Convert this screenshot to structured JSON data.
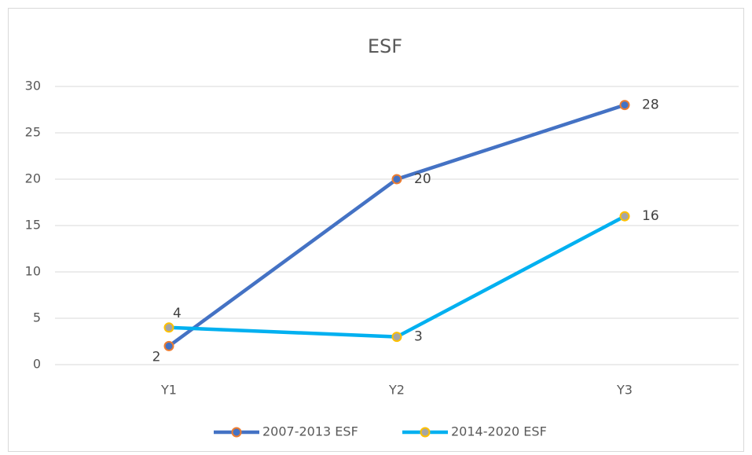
{
  "chart_data": {
    "type": "line",
    "title": "ESF",
    "categories": [
      "Y1",
      "Y2",
      "Y3"
    ],
    "series": [
      {
        "name": "2007-2013 ESF",
        "color": "#4472c4",
        "marker_color": "#4472c4",
        "marker_edge_color": "#ed7d31",
        "values": [
          2,
          20,
          28
        ]
      },
      {
        "name": "2014-2020 ESF",
        "color": "#00b0f0",
        "marker_color": "#a5a5a5",
        "marker_edge_color": "#ffc000",
        "values": [
          4,
          3,
          16
        ]
      }
    ],
    "ylim": [
      0,
      30
    ],
    "yticks": [
      0,
      5,
      10,
      15,
      20,
      25,
      30
    ],
    "grid": true,
    "legend": "bottom"
  }
}
